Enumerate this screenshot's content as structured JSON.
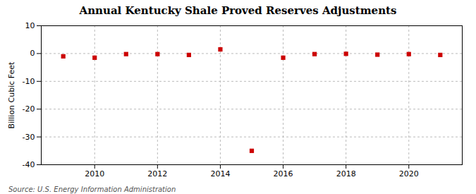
{
  "chart_data": {
    "type": "scatter",
    "title": "Annual Kentucky Shale Proved Reserves Adjustments",
    "ylabel": "Billion Cubic Feet",
    "source": "Source: U.S. Energy Information Administration",
    "x": [
      2009,
      2010,
      2011,
      2012,
      2013,
      2014,
      2015,
      2016,
      2017,
      2018,
      2019,
      2020,
      2021
    ],
    "values": [
      -1.0,
      -1.5,
      -0.2,
      -0.2,
      -0.5,
      1.5,
      -35.0,
      -1.5,
      -0.2,
      -0.1,
      -0.4,
      -0.2,
      -0.5
    ],
    "color": "#cc0000",
    "marker": "square",
    "grid": true,
    "xlim": [
      2008.3,
      2021.7
    ],
    "xticks": [
      2010,
      2012,
      2014,
      2016,
      2018,
      2020
    ],
    "ylim": [
      -40,
      10
    ],
    "yticks": [
      -40,
      -30,
      -20,
      -10,
      0,
      10
    ]
  }
}
